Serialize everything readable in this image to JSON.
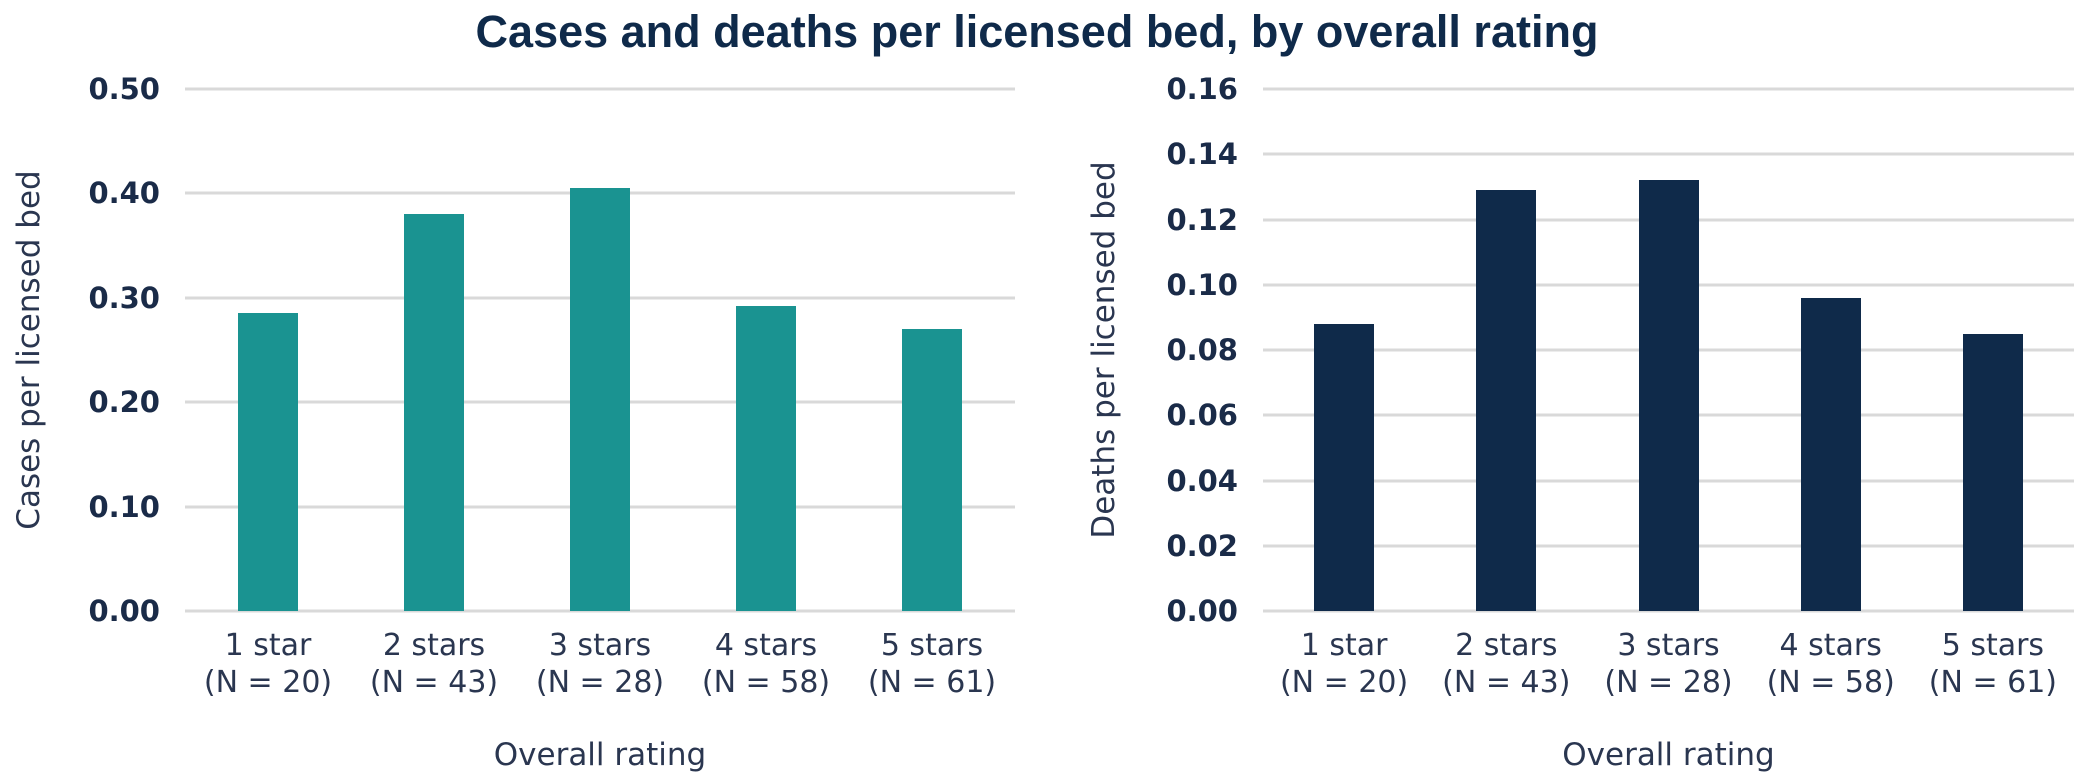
{
  "title": "Cases and deaths per licensed bed, by overall rating",
  "chart_data": [
    {
      "type": "bar",
      "xlabel": "Overall rating",
      "ylabel": "Cases per licensed bed",
      "categories": [
        "1 star\n(N = 20)",
        "2 stars\n(N = 43)",
        "3 stars\n(N = 28)",
        "4 stars\n(N = 58)",
        "5 stars\n(N = 61)"
      ],
      "values": [
        0.285,
        0.38,
        0.405,
        0.292,
        0.27
      ],
      "color": "#1a9391",
      "ylim": [
        0,
        0.5
      ],
      "yticks": [
        {
          "value": 0,
          "label": "0.00"
        },
        {
          "value": 0.1,
          "label": "0.10"
        },
        {
          "value": 0.2,
          "label": "0.20"
        },
        {
          "value": 0.3,
          "label": "0.30"
        },
        {
          "value": 0.4,
          "label": "0.40"
        },
        {
          "value": 0.5,
          "label": "0.50"
        }
      ],
      "grid": true
    },
    {
      "type": "bar",
      "xlabel": "Overall rating",
      "ylabel": "Deaths per licensed bed",
      "categories": [
        "1 star\n(N = 20)",
        "2 stars\n(N = 43)",
        "3 stars\n(N = 28)",
        "4 stars\n(N = 58)",
        "5 stars\n(N = 61)"
      ],
      "values": [
        0.088,
        0.129,
        0.132,
        0.096,
        0.085
      ],
      "color": "#0f2a4a",
      "ylim": [
        0,
        0.16
      ],
      "yticks": [
        {
          "value": 0,
          "label": "0.00"
        },
        0.02,
        0.04,
        0.06,
        0.08,
        {
          "value": 0.1,
          "label": "0.10"
        },
        0.12,
        0.14,
        0.16
      ],
      "grid": true
    }
  ]
}
